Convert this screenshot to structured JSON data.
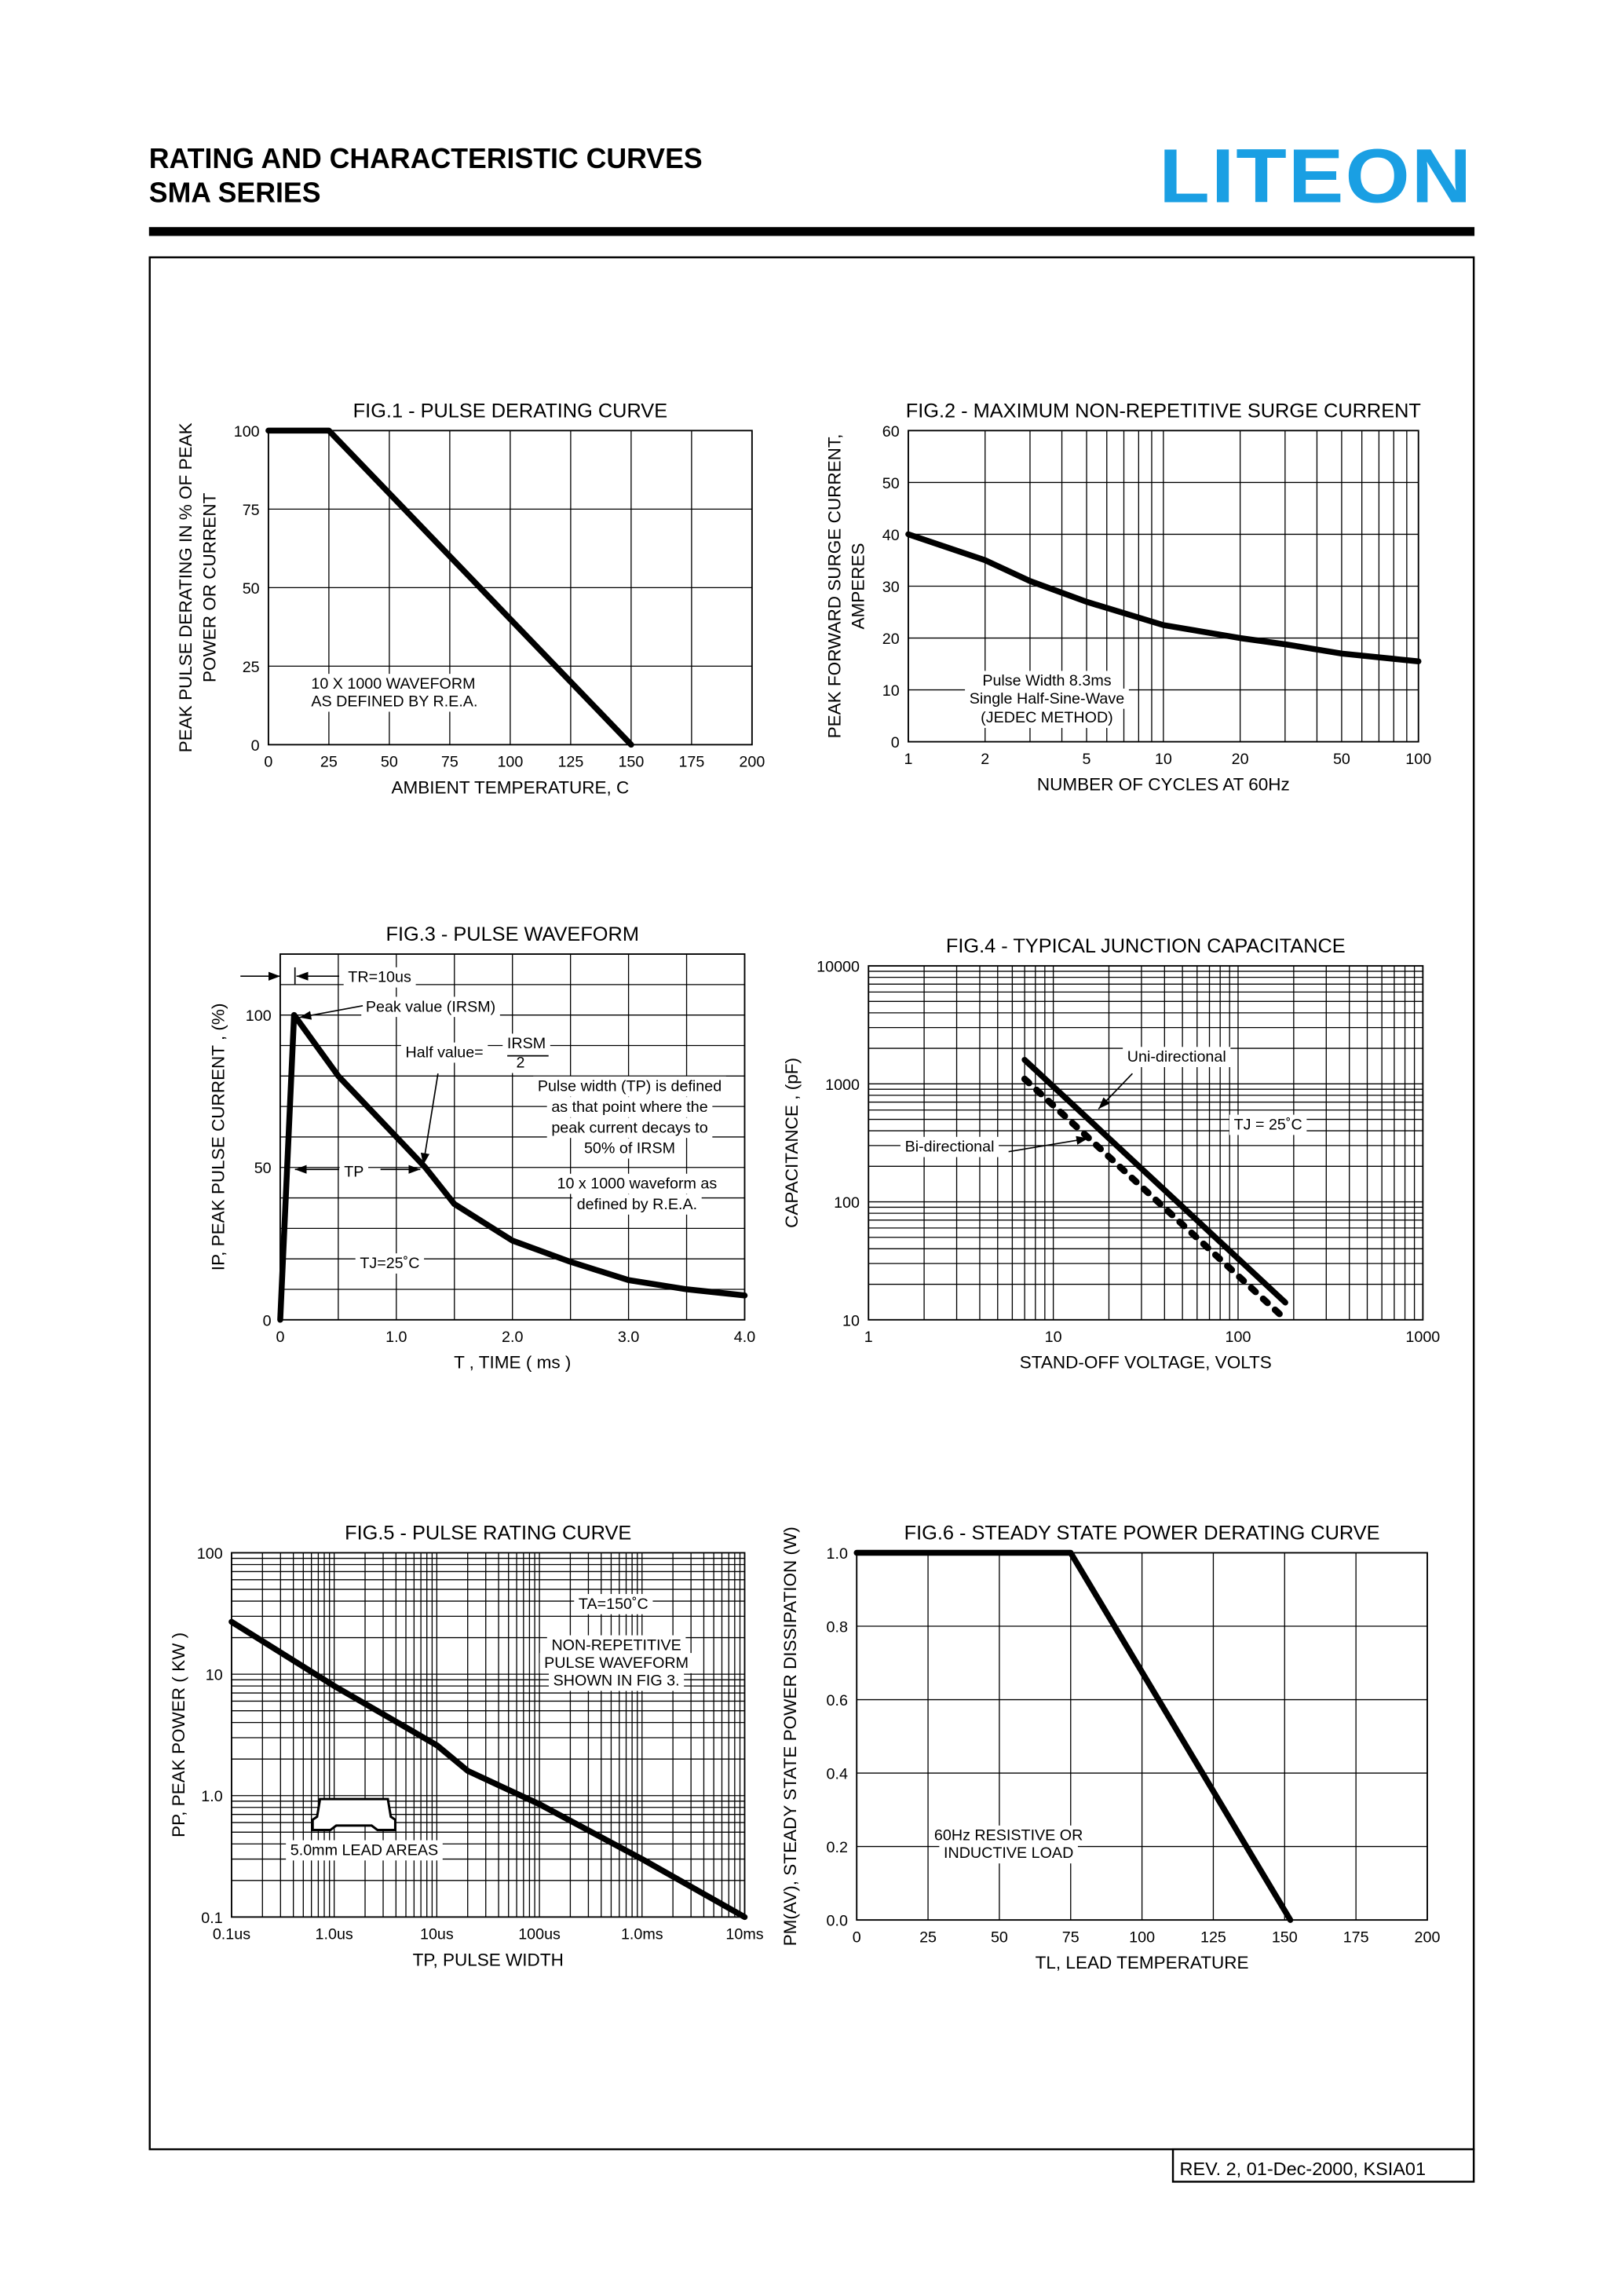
{
  "header": {
    "title_line1": "RATING AND CHARACTERISTIC CURVES",
    "title_line2": "SMA SERIES",
    "logo_text": "LITEON",
    "logo_color": "#1a9fe3"
  },
  "footer": {
    "revision": "REV. 2, 01-Dec-2000, KSIA01"
  },
  "chart_data": [
    {
      "type": "line",
      "title": "FIG.1 - PULSE DERATING CURVE",
      "xlabel": "AMBIENT TEMPERATURE, C",
      "ylabel": [
        "PEAK PULSE DERATING IN % OF PEAK",
        "POWER OR CURRENT"
      ],
      "xscale": "linear",
      "yscale": "linear",
      "xlim": [
        0,
        200
      ],
      "ylim": [
        0,
        100
      ],
      "xticks": [
        0,
        25,
        50,
        75,
        100,
        125,
        150,
        175,
        200
      ],
      "xticklabels": [
        "0",
        "25",
        "50",
        "75",
        "100",
        "125",
        "150",
        "175",
        "200"
      ],
      "yticks": [
        0,
        25,
        50,
        75,
        100
      ],
      "yticklabels": [
        "0",
        "25",
        "50",
        "75",
        "100"
      ],
      "xgrid": [
        25,
        50,
        75,
        100,
        125,
        150,
        175
      ],
      "ygrid": [
        25,
        50,
        75
      ],
      "grid": true,
      "series": [
        {
          "x": [
            0,
            25,
            150
          ],
          "y": [
            100,
            100,
            0
          ],
          "style": "solid"
        }
      ],
      "annotations": [
        "10 X 1000 WAVEFORM",
        "AS DEFINED BY R.E.A."
      ]
    },
    {
      "type": "line",
      "title": "FIG.2 - MAXIMUM NON-REPETITIVE SURGE CURRENT",
      "xlabel": "NUMBER OF CYCLES AT 60Hz",
      "ylabel": [
        "PEAK FORWARD SURGE CURRENT,",
        "AMPERES"
      ],
      "xscale": "log",
      "yscale": "linear",
      "xlim": [
        1,
        100
      ],
      "ylim": [
        0,
        60
      ],
      "xticks": [
        1,
        2,
        5,
        10,
        20,
        50,
        100
      ],
      "xticklabels": [
        "1",
        "2",
        "5",
        "10",
        "20",
        "50",
        "100"
      ],
      "yticks": [
        0,
        10,
        20,
        30,
        40,
        50,
        60
      ],
      "yticklabels": [
        "0",
        "10",
        "20",
        "30",
        "40",
        "50",
        "60"
      ],
      "xgrid": [
        2,
        3,
        4,
        5,
        6,
        7,
        8,
        9,
        10,
        20,
        30,
        40,
        50,
        60,
        70,
        80,
        90
      ],
      "ygrid": [
        10,
        20,
        30,
        40,
        50
      ],
      "grid": true,
      "series": [
        {
          "x": [
            1,
            2,
            3,
            5,
            10,
            20,
            30,
            50,
            100
          ],
          "y": [
            40,
            35,
            31,
            27,
            22.5,
            20,
            18.8,
            17,
            15.5
          ],
          "style": "solid"
        }
      ],
      "annotations": [
        "Pulse Width 8.3ms",
        "Single Half-Sine-Wave",
        "(JEDEC METHOD)"
      ]
    },
    {
      "type": "line",
      "title": "FIG.3 - PULSE  WAVEFORM",
      "xlabel": "T , TIME  ( ms )",
      "ylabel": [
        "IP, PEAK  PULSE  CURRENT , (%)"
      ],
      "xscale": "linear",
      "yscale": "linear",
      "xlim": [
        0,
        4
      ],
      "ylim": [
        0,
        120
      ],
      "xticks": [
        0,
        1,
        2,
        3,
        4
      ],
      "xticklabels": [
        "0",
        "1.0",
        "2.0",
        "3.0",
        "4.0"
      ],
      "yticks": [
        0,
        50,
        100
      ],
      "yticklabels": [
        "0",
        "50",
        "100"
      ],
      "xgrid": [
        0.5,
        1,
        1.5,
        2,
        2.5,
        3,
        3.5
      ],
      "ygrid": [
        10,
        20,
        30,
        40,
        50,
        60,
        70,
        80,
        90,
        100,
        110
      ],
      "grid": true,
      "series": [
        {
          "x": [
            0,
            0.12,
            0.5,
            1.0,
            1.25,
            1.5,
            2.0,
            2.5,
            3.0,
            3.5,
            4.0
          ],
          "y": [
            0,
            100,
            80,
            60,
            50,
            38,
            26,
            19,
            13,
            10,
            8
          ],
          "style": "solid"
        }
      ],
      "annotations": [
        "TR=10us",
        "Peak value (IRSM)",
        "Half value=",
        "IRSM",
        "2",
        "Pulse width (TP) is defined",
        "as that point where the",
        "peak current decays to",
        "50% of IRSM",
        "10 x 1000 waveform as",
        "defined by R.E.A.",
        "TP",
        "TJ=25˚C"
      ]
    },
    {
      "type": "line",
      "title": "FIG.4 - TYPICAL JUNCTION CAPACITANCE",
      "xlabel": "STAND-OFF VOLTAGE, VOLTS",
      "ylabel": [
        "CAPACITANCE , (pF)"
      ],
      "xscale": "log",
      "yscale": "log",
      "xlim": [
        1,
        1000
      ],
      "ylim": [
        10,
        10000
      ],
      "xticks": [
        1,
        10,
        100,
        1000
      ],
      "xticklabels": [
        "1",
        "10",
        "100",
        "1000"
      ],
      "yticks": [
        10,
        100,
        1000,
        10000
      ],
      "yticklabels": [
        "10",
        "100",
        "1000",
        "10000"
      ],
      "xgrid": [
        2,
        3,
        4,
        5,
        6,
        7,
        8,
        9,
        10,
        20,
        30,
        40,
        50,
        60,
        70,
        80,
        90,
        100,
        200,
        300,
        400,
        500,
        600,
        700,
        800,
        900
      ],
      "ygrid": [
        20,
        30,
        40,
        50,
        60,
        70,
        80,
        90,
        100,
        200,
        300,
        400,
        500,
        600,
        700,
        800,
        900,
        1000,
        2000,
        3000,
        4000,
        5000,
        6000,
        7000,
        8000,
        9000
      ],
      "grid": true,
      "series": [
        {
          "name": "Uni-directional",
          "x": [
            7,
            180
          ],
          "y": [
            1600,
            14
          ],
          "style": "solid"
        },
        {
          "name": "Bi-directional",
          "x": [
            7,
            170
          ],
          "y": [
            1100,
            11
          ],
          "style": "dotted"
        }
      ],
      "annotations": [
        "Uni-directional",
        "Bi-directional",
        "TJ = 25˚C"
      ]
    },
    {
      "type": "line",
      "title": "FIG.5 - PULSE  RATING  CURVE",
      "xlabel": "TP, PULSE  WIDTH",
      "ylabel": [
        "PP, PEAK  POWER ( KW )"
      ],
      "xscale": "log",
      "yscale": "log",
      "xlim": [
        0.1,
        10000
      ],
      "ylim": [
        0.1,
        100
      ],
      "xticks": [
        0.1,
        1,
        10,
        100,
        1000,
        10000
      ],
      "xticklabels": [
        "0.1us",
        "1.0us",
        "10us",
        "100us",
        "1.0ms",
        "10ms"
      ],
      "yticks": [
        0.1,
        1,
        10,
        100
      ],
      "yticklabels": [
        "0.1",
        "1.0",
        "10",
        "100"
      ],
      "xgrid": [
        0.2,
        0.3,
        0.4,
        0.5,
        0.6,
        0.7,
        0.8,
        0.9,
        1,
        2,
        3,
        4,
        5,
        6,
        7,
        8,
        9,
        10,
        20,
        30,
        40,
        50,
        60,
        70,
        80,
        90,
        100,
        200,
        300,
        400,
        500,
        600,
        700,
        800,
        900,
        1000,
        2000,
        3000,
        4000,
        5000,
        6000,
        7000,
        8000,
        9000
      ],
      "ygrid": [
        0.2,
        0.3,
        0.4,
        0.5,
        0.6,
        0.7,
        0.8,
        0.9,
        1,
        2,
        3,
        4,
        5,
        6,
        7,
        8,
        9,
        10,
        20,
        30,
        40,
        50,
        60,
        70,
        80,
        90
      ],
      "grid": true,
      "series": [
        {
          "x": [
            0.1,
            1,
            10,
            20,
            100,
            1000,
            10000
          ],
          "y": [
            27,
            8,
            2.6,
            1.6,
            0.85,
            0.3,
            0.1
          ],
          "style": "solid"
        }
      ],
      "annotations": [
        "TA=150˚C",
        "NON-REPETITIVE",
        "PULSE WAVEFORM",
        "SHOWN IN FIG 3.",
        "5.0mm LEAD AREAS"
      ]
    },
    {
      "type": "line",
      "title": "FIG.6 - STEADY STATE POWER DERATING CURVE",
      "xlabel": "TL, LEAD  TEMPERATURE",
      "ylabel": [
        "PM(AV), STEADY STATE POWER DISSIPATION (W)"
      ],
      "xscale": "linear",
      "yscale": "linear",
      "xlim": [
        0,
        200
      ],
      "ylim": [
        0,
        1.0
      ],
      "xticks": [
        0,
        25,
        50,
        75,
        100,
        125,
        150,
        175,
        200
      ],
      "xticklabels": [
        "0",
        "25",
        "50",
        "75",
        "100",
        "125",
        "150",
        "175",
        "200"
      ],
      "yticks": [
        0,
        0.2,
        0.4,
        0.6,
        0.8,
        1.0
      ],
      "yticklabels": [
        "0.0",
        "0.2",
        "0.4",
        "0.6",
        "0.8",
        "1.0"
      ],
      "xgrid": [
        25,
        50,
        75,
        100,
        125,
        150,
        175
      ],
      "ygrid": [
        0.2,
        0.4,
        0.6,
        0.8
      ],
      "grid": true,
      "series": [
        {
          "x": [
            0,
            75,
            152
          ],
          "y": [
            1.0,
            1.0,
            0
          ],
          "style": "solid"
        }
      ],
      "annotations": [
        "60Hz RESISTIVE OR",
        "INDUCTIVE LOAD"
      ]
    }
  ]
}
